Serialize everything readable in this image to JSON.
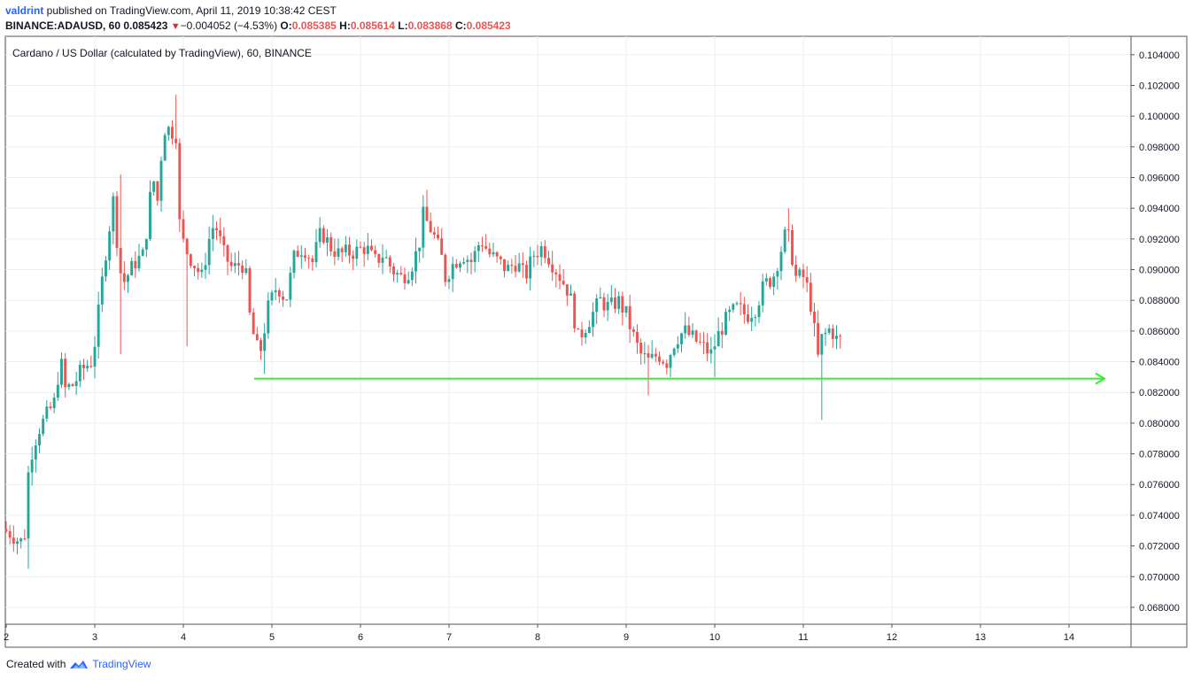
{
  "header": {
    "user": "valdrint",
    "published_text": " published on TradingView.com, April 11, 2019 10:38:42 CEST",
    "symbol": "BINANCE:ADAUSD, 60",
    "last": "0.085423",
    "change": "−0.004052 (−4.53%)",
    "o_label": "O:",
    "o_val": "0.085385",
    "h_label": "H:",
    "h_val": "0.085614",
    "l_label": "L:",
    "l_val": "0.083868",
    "c_label": "C:",
    "c_val": "0.085423"
  },
  "footer": {
    "created_with": "Created with",
    "brand": "TradingView"
  },
  "colors": {
    "up": "#26a69a",
    "down": "#ef5350",
    "grid": "#e9eff3",
    "support": "#33ee33"
  },
  "chart_data": {
    "type": "candlestick",
    "title": "Cardano / US Dollar (calculated by TradingView), 60, BINANCE",
    "x_ticks": [
      "2",
      "3",
      "4",
      "5",
      "6",
      "7",
      "8",
      "9",
      "10",
      "11",
      "12",
      "13",
      "14"
    ],
    "y_ticks": [
      "0.104000",
      "0.102000",
      "0.100000",
      "0.098000",
      "0.096000",
      "0.094000",
      "0.092000",
      "0.090000",
      "0.088000",
      "0.086000",
      "0.084000",
      "0.082000",
      "0.080000",
      "0.078000",
      "0.076000",
      "0.074000",
      "0.072000",
      "0.070000",
      "0.068000"
    ],
    "ylim": [
      0.0669,
      0.1052
    ],
    "xlim": [
      1.99,
      14.7
    ],
    "support_level": {
      "price": 0.0829,
      "from_day": 4.8,
      "to_day": 14.4
    },
    "path": [
      [
        2.0,
        0.0731
      ],
      [
        2.1,
        0.0728
      ],
      [
        2.2,
        0.0722
      ],
      [
        2.25,
        0.0728
      ],
      [
        2.3,
        0.0775
      ],
      [
        2.4,
        0.0795
      ],
      [
        2.5,
        0.0805
      ],
      [
        2.6,
        0.0815
      ],
      [
        2.65,
        0.0845
      ],
      [
        2.7,
        0.0822
      ],
      [
        2.8,
        0.0825
      ],
      [
        2.9,
        0.0835
      ],
      [
        3.0,
        0.084
      ],
      [
        3.05,
        0.0855
      ],
      [
        3.1,
        0.088
      ],
      [
        3.15,
        0.0905
      ],
      [
        3.2,
        0.0925
      ],
      [
        3.25,
        0.0945
      ],
      [
        3.3,
        0.0915
      ],
      [
        3.35,
        0.089
      ],
      [
        3.4,
        0.0895
      ],
      [
        3.5,
        0.0905
      ],
      [
        3.6,
        0.091
      ],
      [
        3.65,
        0.094
      ],
      [
        3.7,
        0.096
      ],
      [
        3.75,
        0.0945
      ],
      [
        3.8,
        0.098
      ],
      [
        3.85,
        0.0998
      ],
      [
        3.9,
        0.0985
      ],
      [
        3.95,
        0.1
      ],
      [
        4.0,
        0.093
      ],
      [
        4.05,
        0.0915
      ],
      [
        4.15,
        0.0905
      ],
      [
        4.25,
        0.0895
      ],
      [
        4.35,
        0.0925
      ],
      [
        4.4,
        0.093
      ],
      [
        4.5,
        0.091
      ],
      [
        4.6,
        0.09
      ],
      [
        4.7,
        0.0905
      ],
      [
        4.75,
        0.0895
      ],
      [
        4.8,
        0.0865
      ],
      [
        4.9,
        0.0843
      ],
      [
        5.0,
        0.0875
      ],
      [
        5.1,
        0.089
      ],
      [
        5.2,
        0.088
      ],
      [
        5.3,
        0.091
      ],
      [
        5.4,
        0.0915
      ],
      [
        5.5,
        0.0905
      ],
      [
        5.6,
        0.0925
      ],
      [
        5.7,
        0.0915
      ],
      [
        5.8,
        0.091
      ],
      [
        6.0,
        0.0912
      ],
      [
        6.1,
        0.0915
      ],
      [
        6.2,
        0.0905
      ],
      [
        6.3,
        0.091
      ],
      [
        6.4,
        0.09
      ],
      [
        6.5,
        0.0895
      ],
      [
        6.6,
        0.09
      ],
      [
        6.7,
        0.0915
      ],
      [
        6.75,
        0.0935
      ],
      [
        6.85,
        0.0925
      ],
      [
        6.95,
        0.091
      ],
      [
        7.0,
        0.0895
      ],
      [
        7.1,
        0.0905
      ],
      [
        7.2,
        0.091
      ],
      [
        7.3,
        0.0905
      ],
      [
        7.4,
        0.092
      ],
      [
        7.5,
        0.091
      ],
      [
        7.6,
        0.0905
      ],
      [
        7.7,
        0.09
      ],
      [
        7.8,
        0.0905
      ],
      [
        7.9,
        0.0895
      ],
      [
        8.0,
        0.091
      ],
      [
        8.1,
        0.0915
      ],
      [
        8.2,
        0.0905
      ],
      [
        8.3,
        0.0895
      ],
      [
        8.4,
        0.0885
      ],
      [
        8.45,
        0.087
      ],
      [
        8.5,
        0.0855
      ],
      [
        8.55,
        0.086
      ],
      [
        8.65,
        0.087
      ],
      [
        8.75,
        0.088
      ],
      [
        8.85,
        0.0875
      ],
      [
        8.95,
        0.088
      ],
      [
        9.05,
        0.087
      ],
      [
        9.1,
        0.086
      ],
      [
        9.2,
        0.0845
      ],
      [
        9.3,
        0.084
      ],
      [
        9.4,
        0.0845
      ],
      [
        9.5,
        0.084
      ],
      [
        9.6,
        0.0855
      ],
      [
        9.7,
        0.086
      ],
      [
        9.8,
        0.0855
      ],
      [
        9.9,
        0.085
      ],
      [
        10.0,
        0.0845
      ],
      [
        10.1,
        0.086
      ],
      [
        10.2,
        0.087
      ],
      [
        10.3,
        0.0875
      ],
      [
        10.4,
        0.087
      ],
      [
        10.5,
        0.0875
      ],
      [
        10.6,
        0.089
      ],
      [
        10.7,
        0.0895
      ],
      [
        10.8,
        0.0915
      ],
      [
        10.85,
        0.0925
      ],
      [
        10.9,
        0.0915
      ],
      [
        10.95,
        0.0895
      ],
      [
        11.05,
        0.0895
      ],
      [
        11.1,
        0.0885
      ],
      [
        11.15,
        0.087
      ],
      [
        11.2,
        0.084
      ],
      [
        11.25,
        0.0855
      ],
      [
        11.35,
        0.0862
      ],
      [
        11.42,
        0.0854
      ]
    ],
    "wicks": [
      {
        "x": 2.25,
        "low": 0.0705
      },
      {
        "x": 3.28,
        "low": 0.0845
      },
      {
        "x": 3.3,
        "high": 0.0962
      },
      {
        "x": 3.9,
        "high": 0.1014
      },
      {
        "x": 4.05,
        "low": 0.085
      },
      {
        "x": 4.9,
        "low": 0.0832
      },
      {
        "x": 6.75,
        "high": 0.0952
      },
      {
        "x": 9.25,
        "low": 0.0818
      },
      {
        "x": 10.0,
        "low": 0.083
      },
      {
        "x": 10.85,
        "high": 0.094
      },
      {
        "x": 11.2,
        "low": 0.0802
      }
    ]
  }
}
